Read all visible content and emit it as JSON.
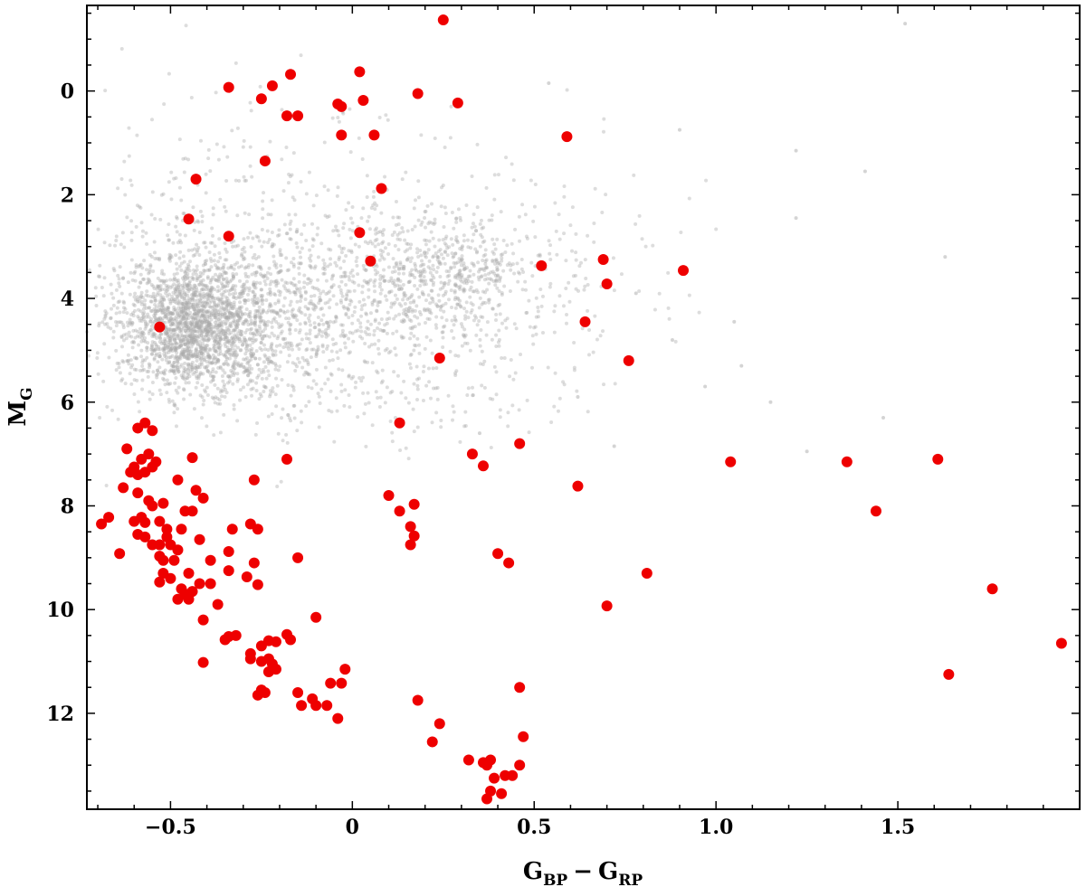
{
  "chart_data": {
    "type": "scatter",
    "xlabel": {
      "main": "G",
      "sub1": "BP",
      "minus": "−",
      "main2": "G",
      "sub2": "RP"
    },
    "ylabel": {
      "main": "M",
      "sub": "G"
    },
    "xlim": [
      -0.73,
      2.0
    ],
    "ylim": [
      13.85,
      -1.65
    ],
    "y_inverted": true,
    "grid": false,
    "x_ticks": [
      -0.5,
      0.0,
      0.5,
      1.0,
      1.5
    ],
    "x_tick_labels": [
      "−0.5",
      "0",
      "0.5",
      "1.0",
      "1.5"
    ],
    "y_ticks": [
      0,
      2,
      4,
      6,
      8,
      10,
      12
    ],
    "y_tick_labels": [
      "0",
      "2",
      "4",
      "6",
      "8",
      "10",
      "12"
    ],
    "colors": {
      "highlight": "#ee0000",
      "background": "#a9a9a9",
      "frame": "#000000"
    },
    "series": [
      {
        "role": "background",
        "marker": "small-gray-dot",
        "density": [
          {
            "cx": -0.44,
            "cy": 4.5,
            "sx": 0.1,
            "sy": 0.6,
            "n": 1650
          },
          {
            "cx": -0.28,
            "cy": 4.4,
            "sx": 0.2,
            "sy": 0.9,
            "n": 750
          },
          {
            "cx": -0.08,
            "cy": 3.9,
            "sx": 0.28,
            "sy": 1.1,
            "n": 500
          },
          {
            "cx": 0.25,
            "cy": 3.5,
            "sx": 0.13,
            "sy": 0.55,
            "n": 450
          },
          {
            "cx": 0.1,
            "cy": 3.8,
            "sx": 0.3,
            "sy": 1.2,
            "n": 300
          },
          {
            "cx": -0.3,
            "cy": 2.0,
            "sx": 0.25,
            "sy": 1.2,
            "n": 130
          },
          {
            "cx": 0.55,
            "cy": 3.8,
            "sx": 0.2,
            "sy": 1.3,
            "n": 100
          },
          {
            "cx": 0.1,
            "cy": 5.8,
            "sx": 0.25,
            "sy": 0.5,
            "n": 120
          }
        ],
        "outliers": [
          [
            1.52,
            -1.3
          ],
          [
            0.9,
            0.75
          ],
          [
            1.22,
            1.15
          ],
          [
            1.41,
            1.55
          ],
          [
            1.22,
            2.45
          ],
          [
            1.63,
            3.2
          ],
          [
            1.05,
            4.45
          ],
          [
            0.97,
            5.7
          ],
          [
            1.15,
            6.0
          ],
          [
            1.46,
            6.3
          ],
          [
            1.25,
            6.95
          ],
          [
            0.72,
            6.85
          ],
          [
            0.54,
            -0.15
          ],
          [
            0.78,
            3.9
          ],
          [
            0.88,
            4.8
          ],
          [
            1.07,
            5.3
          ],
          [
            0.62,
            5.9
          ],
          [
            0.35,
            6.6
          ]
        ]
      },
      {
        "role": "highlighted",
        "marker": "red-circle",
        "points": [
          [
            0.25,
            -1.37
          ],
          [
            -0.17,
            -0.32
          ],
          [
            0.02,
            -0.37
          ],
          [
            -0.34,
            -0.07
          ],
          [
            -0.22,
            -0.1
          ],
          [
            0.18,
            0.05
          ],
          [
            -0.25,
            0.15
          ],
          [
            0.29,
            0.23
          ],
          [
            -0.04,
            0.25
          ],
          [
            -0.03,
            0.3
          ],
          [
            0.03,
            0.18
          ],
          [
            -0.18,
            0.48
          ],
          [
            -0.15,
            0.48
          ],
          [
            -0.03,
            0.85
          ],
          [
            0.06,
            0.85
          ],
          [
            0.59,
            0.88
          ],
          [
            -0.24,
            1.35
          ],
          [
            -0.43,
            1.7
          ],
          [
            0.08,
            1.88
          ],
          [
            -0.45,
            2.47
          ],
          [
            0.02,
            2.73
          ],
          [
            -0.34,
            2.8
          ],
          [
            0.69,
            3.25
          ],
          [
            0.05,
            3.28
          ],
          [
            0.52,
            3.37
          ],
          [
            0.91,
            3.46
          ],
          [
            0.7,
            3.72
          ],
          [
            0.64,
            4.45
          ],
          [
            -0.53,
            4.55
          ],
          [
            0.76,
            5.2
          ],
          [
            0.24,
            5.15
          ],
          [
            0.13,
            6.4
          ],
          [
            -0.55,
            6.55
          ],
          [
            -0.57,
            6.4
          ],
          [
            -0.59,
            6.5
          ],
          [
            0.46,
            6.8
          ],
          [
            0.33,
            7.0
          ],
          [
            0.36,
            7.23
          ],
          [
            -0.44,
            7.07
          ],
          [
            -0.18,
            7.1
          ],
          [
            1.04,
            7.15
          ],
          [
            1.36,
            7.15
          ],
          [
            1.61,
            7.1
          ],
          [
            -0.56,
            7.0
          ],
          [
            -0.58,
            7.1
          ],
          [
            -0.6,
            7.25
          ],
          [
            -0.57,
            7.35
          ],
          [
            -0.55,
            7.25
          ],
          [
            -0.61,
            7.35
          ],
          [
            -0.62,
            6.9
          ],
          [
            -0.59,
            7.4
          ],
          [
            -0.54,
            7.15
          ],
          [
            -0.27,
            7.5
          ],
          [
            -0.48,
            7.5
          ],
          [
            -0.63,
            7.65
          ],
          [
            0.62,
            7.62
          ],
          [
            -0.43,
            7.7
          ],
          [
            -0.41,
            7.85
          ],
          [
            0.1,
            7.8
          ],
          [
            -0.59,
            7.75
          ],
          [
            0.17,
            7.97
          ],
          [
            -0.52,
            7.95
          ],
          [
            -0.55,
            8.0
          ],
          [
            -0.56,
            7.9
          ],
          [
            0.13,
            8.1
          ],
          [
            -0.46,
            8.1
          ],
          [
            -0.44,
            8.1
          ],
          [
            1.44,
            8.1
          ],
          [
            -0.58,
            8.22
          ],
          [
            -0.6,
            8.3
          ],
          [
            -0.53,
            8.3
          ],
          [
            -0.67,
            8.22
          ],
          [
            -0.57,
            8.32
          ],
          [
            -0.69,
            8.35
          ],
          [
            -0.28,
            8.35
          ],
          [
            -0.26,
            8.45
          ],
          [
            -0.47,
            8.45
          ],
          [
            -0.51,
            8.45
          ],
          [
            -0.33,
            8.45
          ],
          [
            0.16,
            8.4
          ],
          [
            0.17,
            8.58
          ],
          [
            -0.59,
            8.55
          ],
          [
            -0.57,
            8.6
          ],
          [
            -0.51,
            8.6
          ],
          [
            -0.42,
            8.65
          ],
          [
            -0.5,
            8.75
          ],
          [
            -0.53,
            8.75
          ],
          [
            -0.55,
            8.75
          ],
          [
            0.16,
            8.75
          ],
          [
            -0.48,
            8.85
          ],
          [
            -0.34,
            8.88
          ],
          [
            -0.64,
            8.92
          ],
          [
            0.4,
            8.92
          ],
          [
            -0.15,
            9.0
          ],
          [
            -0.53,
            8.97
          ],
          [
            -0.52,
            9.05
          ],
          [
            -0.49,
            9.05
          ],
          [
            -0.39,
            9.05
          ],
          [
            -0.27,
            9.1
          ],
          [
            0.43,
            9.1
          ],
          [
            -0.45,
            9.3
          ],
          [
            -0.52,
            9.3
          ],
          [
            0.81,
            9.3
          ],
          [
            -0.29,
            9.37
          ],
          [
            -0.5,
            9.4
          ],
          [
            -0.53,
            9.47
          ],
          [
            -0.34,
            9.25
          ],
          [
            -0.42,
            9.5
          ],
          [
            -0.39,
            9.5
          ],
          [
            -0.26,
            9.52
          ],
          [
            -0.47,
            9.6
          ],
          [
            -0.44,
            9.65
          ],
          [
            -0.46,
            9.7
          ],
          [
            -0.48,
            9.8
          ],
          [
            -0.45,
            9.8
          ],
          [
            -0.37,
            9.9
          ],
          [
            0.7,
            9.93
          ],
          [
            1.76,
            9.6
          ],
          [
            -0.41,
            10.2
          ],
          [
            -0.1,
            10.15
          ],
          [
            -0.18,
            10.48
          ],
          [
            -0.17,
            10.58
          ],
          [
            -0.32,
            10.5
          ],
          [
            -0.34,
            10.52
          ],
          [
            -0.35,
            10.58
          ],
          [
            -0.23,
            10.6
          ],
          [
            -0.21,
            10.62
          ],
          [
            -0.25,
            10.7
          ],
          [
            -0.28,
            10.85
          ],
          [
            -0.28,
            10.95
          ],
          [
            -0.23,
            10.95
          ],
          [
            -0.25,
            11.0
          ],
          [
            -0.22,
            11.05
          ],
          [
            -0.21,
            11.15
          ],
          [
            -0.23,
            11.2
          ],
          [
            -0.41,
            11.02
          ],
          [
            -0.02,
            11.15
          ],
          [
            1.95,
            10.65
          ],
          [
            -0.06,
            11.42
          ],
          [
            -0.03,
            11.42
          ],
          [
            -0.25,
            11.55
          ],
          [
            -0.24,
            11.6
          ],
          [
            -0.26,
            11.65
          ],
          [
            -0.15,
            11.6
          ],
          [
            -0.11,
            11.72
          ],
          [
            -0.1,
            11.85
          ],
          [
            -0.07,
            11.85
          ],
          [
            -0.14,
            11.85
          ],
          [
            0.46,
            11.5
          ],
          [
            1.64,
            11.25
          ],
          [
            0.18,
            11.75
          ],
          [
            -0.04,
            12.1
          ],
          [
            0.24,
            12.2
          ],
          [
            0.22,
            12.55
          ],
          [
            0.47,
            12.45
          ],
          [
            0.32,
            12.9
          ],
          [
            0.36,
            12.95
          ],
          [
            0.37,
            13.0
          ],
          [
            0.38,
            12.9
          ],
          [
            0.46,
            13.0
          ],
          [
            0.44,
            13.2
          ],
          [
            0.42,
            13.2
          ],
          [
            0.39,
            13.25
          ],
          [
            0.38,
            13.5
          ],
          [
            0.41,
            13.55
          ],
          [
            0.37,
            13.65
          ]
        ]
      }
    ]
  }
}
